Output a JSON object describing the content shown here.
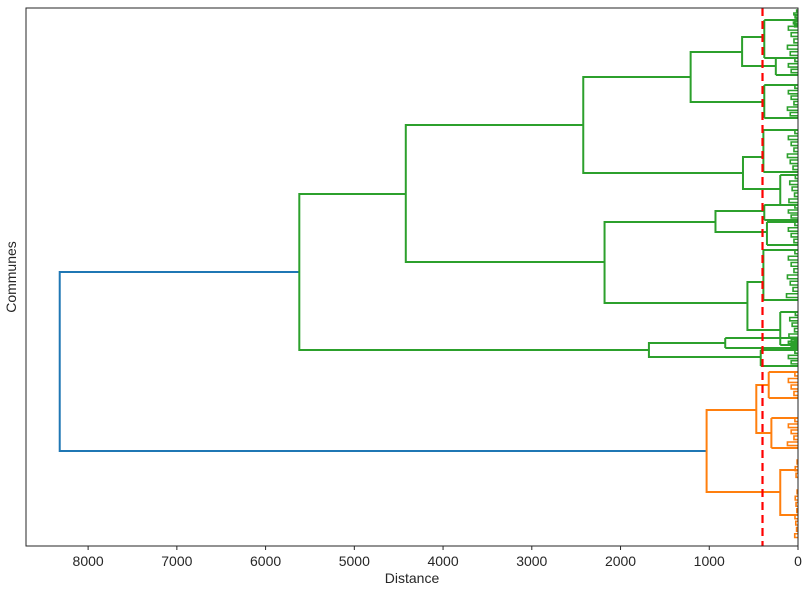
{
  "chart_data": {
    "type": "dendrogram",
    "orientation": "left",
    "xlabel": "Distance",
    "ylabel": "Communes",
    "xlim": [
      8700,
      0
    ],
    "xticks": [
      8000,
      7000,
      6000,
      5000,
      4000,
      3000,
      2000,
      1000,
      0
    ],
    "grid": false,
    "threshold": {
      "value": 400,
      "color": "#ff0000",
      "style": "dashed"
    },
    "colors": {
      "root": "#1f77b4",
      "cluster_a": "#2ca02c",
      "cluster_b": "#ff7f0e"
    },
    "merges": [
      {
        "id": "root",
        "distance": 8320,
        "color": "root",
        "children": [
          "g_top",
          "o_top"
        ]
      },
      {
        "id": "g_top",
        "distance": 5620,
        "color": "cluster_a",
        "children": [
          "g_4400",
          "g_1680"
        ]
      },
      {
        "id": "g_4400",
        "distance": 4420,
        "color": "cluster_a",
        "children": [
          "g_2420",
          "g_2180"
        ]
      },
      {
        "id": "g_2420",
        "distance": 2420,
        "color": "cluster_a",
        "children": [
          "g_1210",
          "g_620"
        ]
      },
      {
        "id": "g_1210",
        "distance": 1210,
        "color": "cluster_a",
        "children": [
          "g_630",
          "g_380a"
        ]
      },
      {
        "id": "g_630",
        "distance": 630,
        "color": "cluster_a",
        "children": [
          "g_380b",
          "g_250a"
        ]
      },
      {
        "id": "g_620",
        "distance": 620,
        "color": "cluster_a",
        "children": [
          "g_390a",
          "g_200a"
        ]
      },
      {
        "id": "g_2180",
        "distance": 2180,
        "color": "cluster_a",
        "children": [
          "g_930",
          "g_570"
        ]
      },
      {
        "id": "g_930",
        "distance": 930,
        "color": "cluster_a",
        "children": [
          "g_380c",
          "g_350a"
        ]
      },
      {
        "id": "g_570",
        "distance": 570,
        "color": "cluster_a",
        "children": [
          "g_390b",
          "g_200b"
        ]
      },
      {
        "id": "g_1680",
        "distance": 1680,
        "color": "cluster_a",
        "children": [
          "g_820",
          "g_420"
        ]
      },
      {
        "id": "o_top",
        "distance": 1030,
        "color": "cluster_b",
        "children": [
          "o_470",
          "o_200"
        ]
      },
      {
        "id": "o_470",
        "distance": 470,
        "color": "cluster_b",
        "children": [
          "o_330a",
          "o_300a"
        ]
      },
      {
        "id": "o_200",
        "distance": 200,
        "color": "cluster_b",
        "children": [
          "o_leaf_a",
          "o_leaf_b"
        ]
      }
    ]
  }
}
